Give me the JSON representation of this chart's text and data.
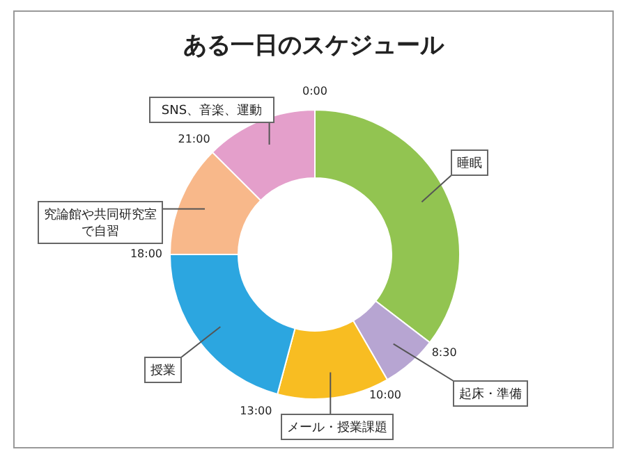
{
  "chart_data": {
    "type": "donut",
    "title": "ある一日のスケジュール",
    "categories": [
      "睡眠",
      "起床・準備",
      "メール・授業課題",
      "授業",
      "究論館や共同研究室で自習",
      "SNS、音楽、運動"
    ],
    "values": [
      35.42,
      6.25,
      12.5,
      20.83,
      12.5,
      12.5
    ],
    "colors": [
      "#92c451",
      "#b7a5d2",
      "#f8bd22",
      "#2ca6e0",
      "#f8b88a",
      "#e49fcb"
    ],
    "annotations": [
      "0:00",
      "8:30",
      "10:00",
      "13:00",
      "18:00",
      "21:00"
    ]
  }
}
